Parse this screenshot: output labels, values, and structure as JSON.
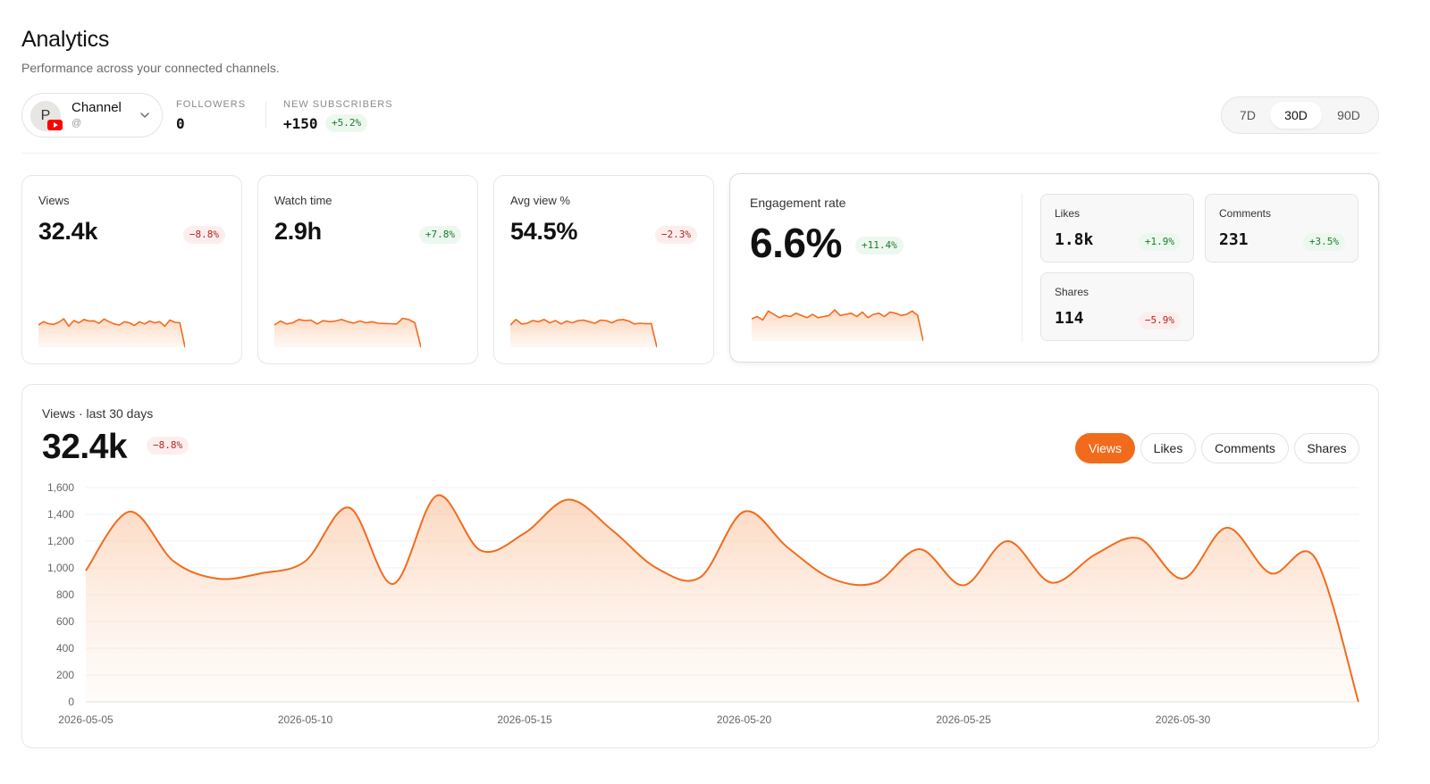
{
  "header": {
    "title": "Analytics",
    "subtitle": "Performance across your connected channels."
  },
  "channel": {
    "avatar_initial": "P",
    "name": "Channel",
    "handle": "@",
    "platform_icon": "youtube-icon"
  },
  "stats": {
    "followers_label": "FOLLOWERS",
    "followers_value": "0",
    "new_subs_label": "NEW SUBSCRIBERS",
    "new_subs_value": "+150",
    "new_subs_change": "+5.2%"
  },
  "range": {
    "options": [
      "7D",
      "30D",
      "90D"
    ],
    "selected": "30D"
  },
  "kpis": [
    {
      "label": "Views",
      "value": "32.4k",
      "change": "−8.8%",
      "trend": "neg",
      "spark": [
        1000,
        1150,
        1060,
        1030,
        1120,
        1280,
        950,
        1200,
        1100,
        1250,
        1180,
        1190,
        1080,
        1270,
        1150,
        1050,
        1000,
        1150,
        1100,
        980,
        1150,
        1050,
        1180,
        1100,
        1150,
        950,
        1220,
        1120,
        1100,
        0
      ]
    },
    {
      "label": "Watch time",
      "value": "2.9h",
      "change": "+7.8%",
      "trend": "pos",
      "spark": [
        1000,
        1180,
        1050,
        1100,
        1250,
        1200,
        1220,
        1050,
        1200,
        1150,
        1180,
        1250,
        1150,
        1090,
        1180,
        1100,
        1150,
        1080,
        1070,
        1060,
        1050,
        1300,
        1250,
        1100,
        0
      ]
    },
    {
      "label": "Avg view %",
      "value": "54.5%",
      "change": "−2.3%",
      "trend": "neg",
      "spark": [
        1000,
        1250,
        1050,
        1080,
        1200,
        1150,
        1250,
        1100,
        1200,
        1050,
        1180,
        1100,
        1200,
        1220,
        1150,
        1080,
        1220,
        1200,
        1100,
        1220,
        1250,
        1180,
        1050,
        1080,
        1060,
        1070,
        0
      ]
    }
  ],
  "engagement": {
    "label": "Engagement rate",
    "value": "6.6%",
    "change": "+11.4%",
    "spark": [
      1000,
      1100,
      950,
      1350,
      1200,
      1050,
      1150,
      1100,
      1250,
      1150,
      1050,
      1200,
      1050,
      1100,
      1150,
      1400,
      1150,
      1200,
      1250,
      1100,
      1300,
      1050,
      1200,
      1250,
      1100,
      1300,
      1250,
      1150,
      1200,
      1350,
      1150,
      0
    ],
    "metrics": [
      {
        "label": "Likes",
        "value": "1.8k",
        "change": "+1.9%",
        "trend": "pos"
      },
      {
        "label": "Comments",
        "value": "231",
        "change": "+3.5%",
        "trend": "pos"
      },
      {
        "label": "Shares",
        "value": "114",
        "change": "−5.9%",
        "trend": "neg"
      }
    ]
  },
  "main_chart": {
    "label": "Views · last 30 days",
    "value": "32.4k",
    "change": "−8.8%",
    "tabs": [
      "Views",
      "Likes",
      "Comments",
      "Shares"
    ],
    "active_tab": "Views"
  },
  "colors": {
    "accent": "#f26b1d",
    "positive": "#1d7a31",
    "negative": "#b42323"
  },
  "chart_data": {
    "type": "area",
    "x": [
      "2026-05-05",
      "2026-05-06",
      "2026-05-07",
      "2026-05-08",
      "2026-05-09",
      "2026-05-10",
      "2026-05-11",
      "2026-05-12",
      "2026-05-13",
      "2026-05-14",
      "2026-05-15",
      "2026-05-16",
      "2026-05-17",
      "2026-05-18",
      "2026-05-19",
      "2026-05-20",
      "2026-05-21",
      "2026-05-22",
      "2026-05-23",
      "2026-05-24",
      "2026-05-25",
      "2026-05-26",
      "2026-05-27",
      "2026-05-28",
      "2026-05-29",
      "2026-05-30",
      "2026-05-31",
      "2026-06-01",
      "2026-06-02",
      "2026-06-03"
    ],
    "series": [
      {
        "values": [
          980,
          1420,
          1050,
          920,
          960,
          1050,
          1450,
          880,
          1540,
          1130,
          1260,
          1510,
          1280,
          1000,
          930,
          1420,
          1150,
          920,
          890,
          1140,
          870,
          1200,
          890,
          1100,
          1220,
          920,
          1300,
          960,
          1080,
          0
        ]
      }
    ],
    "x_tick_labels": [
      "2026-05-05",
      "2026-05-10",
      "2026-05-15",
      "2026-05-20",
      "2026-05-25",
      "2026-05-30"
    ],
    "y_tick_labels": [
      "0",
      "200",
      "400",
      "600",
      "800",
      "1,000",
      "1,200",
      "1,400",
      "1,600"
    ],
    "ylim": [
      0,
      1600
    ],
    "xlabel": "",
    "ylabel": "",
    "grid": true
  }
}
